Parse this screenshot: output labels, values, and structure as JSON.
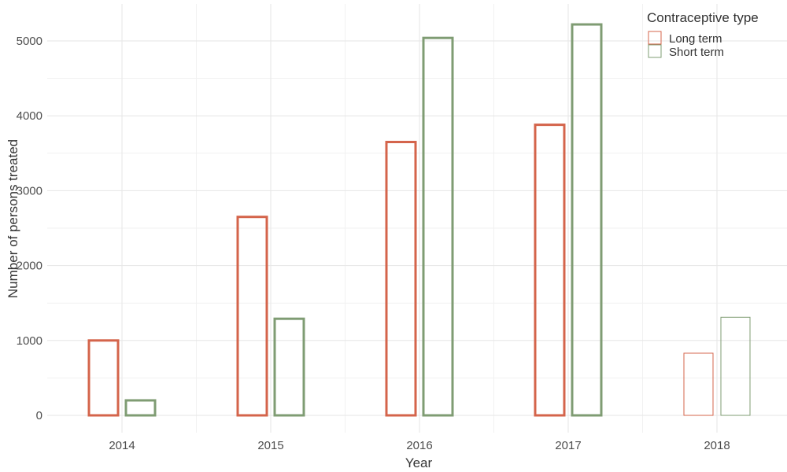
{
  "chart_data": {
    "type": "bar",
    "categories": [
      "2014",
      "2015",
      "2016",
      "2017",
      "2018"
    ],
    "series": [
      {
        "name": "Long term",
        "color": "#d4644b",
        "values": [
          1000,
          2650,
          3650,
          3880,
          830
        ],
        "stroke_style": [
          "bold",
          "bold",
          "bold",
          "bold",
          "thin"
        ]
      },
      {
        "name": "Short term",
        "color": "#7f9c73",
        "values": [
          200,
          1290,
          5040,
          5220,
          1310
        ],
        "stroke_style": [
          "bold",
          "bold",
          "bold",
          "bold",
          "thin"
        ]
      }
    ],
    "title": "",
    "xlabel": "Year",
    "ylabel": "Number of persons treated",
    "ylim": [
      -250,
      5500
    ],
    "yticks": [
      0,
      1000,
      2000,
      3000,
      4000,
      5000
    ],
    "grid": true,
    "legend": {
      "title": "Contraceptive type",
      "position": "top-right"
    }
  }
}
